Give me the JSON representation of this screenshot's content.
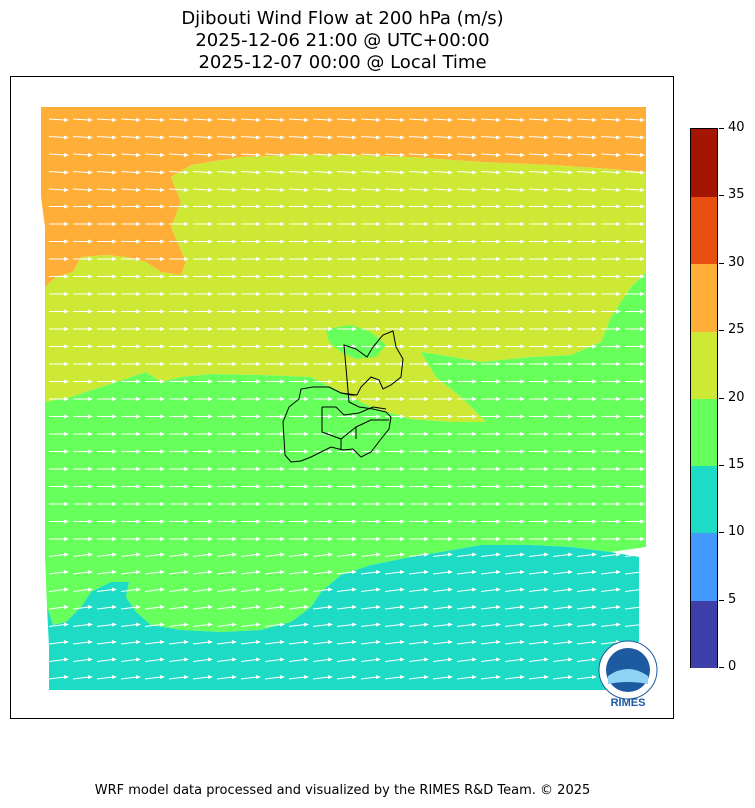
{
  "title": {
    "line1": "Djibouti Wind Flow at 200 hPa (m/s)",
    "line2": "2025-12-06 21:00 @ UTC+00:00",
    "line3": "2025-12-07 00:00 @ Local Time"
  },
  "colorbar": {
    "ticks": [
      "0",
      "5",
      "10",
      "15",
      "20",
      "25",
      "30",
      "35",
      "40"
    ],
    "levels": [
      {
        "range": "0-5",
        "color": "#3f3faa"
      },
      {
        "range": "5-10",
        "color": "#4499ff"
      },
      {
        "range": "10-15",
        "color": "#1ddbc4"
      },
      {
        "range": "15-20",
        "color": "#66ff5c"
      },
      {
        "range": "20-25",
        "color": "#cde835"
      },
      {
        "range": "25-30",
        "color": "#ffae38"
      },
      {
        "range": "30-35",
        "color": "#ea4f12"
      },
      {
        "range": "35-40",
        "color": "#a51503"
      }
    ]
  },
  "logo": {
    "text": "RIMES"
  },
  "footer": "WRF model data processed and visualized by the RIMES R&D Team. © 2025"
}
